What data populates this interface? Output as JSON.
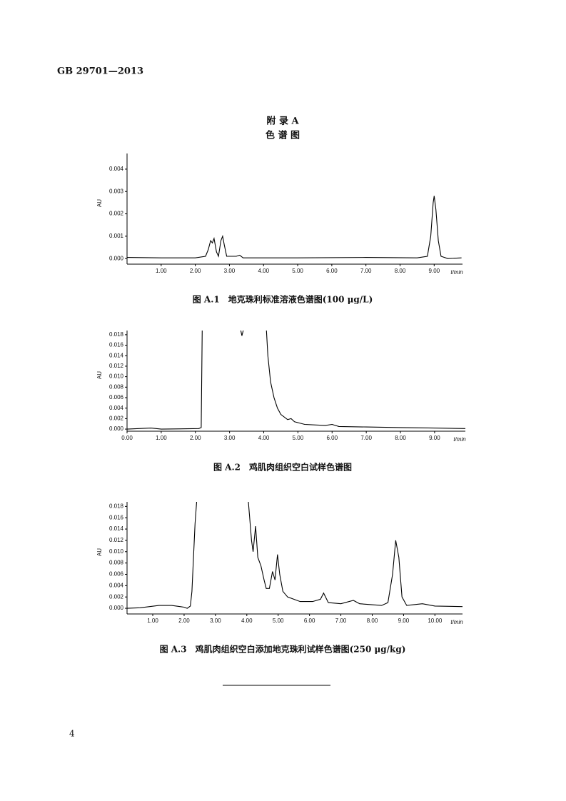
{
  "header": "GB 29701—2013",
  "appendix_title": "附 录 A",
  "appendix_subtitle": "色 谱 图",
  "page_number": "4",
  "chart_data": [
    {
      "type": "line",
      "title": "图 A.1　地克珠利标准溶液色谱图(100 μg/L)",
      "x_label": "t/min",
      "y_label": "AU",
      "color": "#000000",
      "x": [
        0,
        1,
        2,
        2.3,
        2.38,
        2.45,
        2.5,
        2.55,
        2.62,
        2.68,
        2.75,
        2.8,
        2.85,
        2.92,
        3.2,
        3.3,
        3.4,
        5,
        7,
        8.5,
        8.8,
        8.9,
        8.97,
        9,
        9.05,
        9.12,
        9.2,
        9.4,
        9.8
      ],
      "values": [
        5e-05,
        3e-05,
        3e-05,
        0.0001,
        0.0004,
        0.0008,
        0.0007,
        0.0009,
        0.0003,
        0.0001,
        0.0008,
        0.001,
        0.0006,
        0.0001,
        0.0001,
        0.00015,
        3e-05,
        3e-05,
        5e-05,
        3e-05,
        0.0001,
        0.001,
        0.0025,
        0.0028,
        0.0022,
        0.0008,
        0.0001,
        0,
        3e-05
      ],
      "xlim": [
        0,
        9.83
      ],
      "ylim": [
        -0.00025,
        0.0047
      ],
      "xticks": [
        {
          "value": 1,
          "label": "1.00"
        },
        {
          "value": 2,
          "label": "2.00"
        },
        {
          "value": 3,
          "label": "3.00"
        },
        {
          "value": 4,
          "label": "4.00"
        },
        {
          "value": 5,
          "label": "5.00"
        },
        {
          "value": 6,
          "label": "6.00"
        },
        {
          "value": 7,
          "label": "7.00"
        },
        {
          "value": 8,
          "label": "8.00"
        },
        {
          "value": 9,
          "label": "9.00"
        }
      ],
      "yticks": [
        {
          "value": 0,
          "label": "0.000"
        },
        {
          "value": 0.001,
          "label": "0.001"
        },
        {
          "value": 0.002,
          "label": "0.002"
        },
        {
          "value": 0.003,
          "label": "0.003"
        },
        {
          "value": 0.004,
          "label": "0.004"
        }
      ]
    },
    {
      "type": "line",
      "title": "图 A.2　鸡肌肉组织空白试样色谱图",
      "x_label": "t/min",
      "y_label": "AU",
      "color": "#000000",
      "x": [
        0,
        0.7,
        1,
        2.1,
        2.17,
        2.2,
        2.8,
        3.33,
        3.36,
        3.4,
        3.8,
        4.08,
        4.12,
        4.2,
        4.3,
        4.4,
        4.5,
        4.7,
        4.8,
        4.9,
        5.2,
        5.8,
        6,
        6.2,
        7,
        8,
        9,
        9.9
      ],
      "values": [
        0,
        0.0002,
        0,
        0.0001,
        0.0003,
        0.0188,
        null,
        0.0188,
        0.0178,
        0.0188,
        null,
        0.0188,
        0.014,
        0.009,
        0.006,
        0.004,
        0.0028,
        0.0018,
        0.002,
        0.0014,
        0.0009,
        0.0007,
        0.0009,
        0.0005,
        0.0004,
        0.0003,
        0.0002,
        0.0001
      ],
      "xlim": [
        0,
        9.9
      ],
      "ylim": [
        -0.0004,
        0.0188
      ],
      "xticks": [
        {
          "value": 0,
          "label": "0.00"
        },
        {
          "value": 1,
          "label": "1.00"
        },
        {
          "value": 2,
          "label": "2.00"
        },
        {
          "value": 3,
          "label": "3.00"
        },
        {
          "value": 4,
          "label": "4.00"
        },
        {
          "value": 5,
          "label": "5.00"
        },
        {
          "value": 6,
          "label": "6.00"
        },
        {
          "value": 7,
          "label": "7.00"
        },
        {
          "value": 8,
          "label": "8.00"
        },
        {
          "value": 9,
          "label": "9.00"
        }
      ],
      "yticks": [
        {
          "value": 0,
          "label": "0.000"
        },
        {
          "value": 0.002,
          "label": "0.002"
        },
        {
          "value": 0.004,
          "label": "0.004"
        },
        {
          "value": 0.006,
          "label": "0.006"
        },
        {
          "value": 0.008,
          "label": "0.008"
        },
        {
          "value": 0.01,
          "label": "0.010"
        },
        {
          "value": 0.012,
          "label": "0.012"
        },
        {
          "value": 0.014,
          "label": "0.014"
        },
        {
          "value": 0.016,
          "label": "0.016"
        },
        {
          "value": 0.018,
          "label": "0.018"
        }
      ]
    },
    {
      "type": "line",
      "title": "图 A.3　鸡肌肉组织空白添加地克珠利试样色谱图(250 μg/kg)",
      "x_label": "t/min",
      "y_label": "AU",
      "color": "#000000",
      "x": [
        0.18,
        0.6,
        1.2,
        1.6,
        2,
        2.1,
        2.2,
        2.25,
        2.35,
        2.4,
        3,
        4.05,
        4.15,
        4.2,
        4.28,
        4.35,
        4.45,
        4.55,
        4.62,
        4.72,
        4.82,
        4.9,
        4.98,
        5.05,
        5.15,
        5.3,
        5.7,
        6.1,
        6.35,
        6.45,
        6.6,
        7,
        7.4,
        7.6,
        8.3,
        8.5,
        8.65,
        8.75,
        8.85,
        8.95,
        9.1,
        9.6,
        10,
        10.88
      ],
      "values": [
        0,
        0.0001,
        0.0005,
        0.0005,
        0.0002,
        0,
        0.0004,
        0.003,
        0.015,
        0.0188,
        null,
        0.0188,
        0.012,
        0.01,
        0.0145,
        0.009,
        0.0075,
        0.005,
        0.0035,
        0.0035,
        0.0065,
        0.005,
        0.0095,
        0.006,
        0.003,
        0.002,
        0.0012,
        0.0012,
        0.0016,
        0.0027,
        0.001,
        0.0008,
        0.0014,
        0.0008,
        0.0005,
        0.001,
        0.006,
        0.012,
        0.009,
        0.002,
        0.0005,
        0.0008,
        0.0004,
        0.0003
      ],
      "xlim": [
        0.18,
        10.88
      ],
      "ylim": [
        -0.001,
        0.0188
      ],
      "xticks": [
        {
          "value": 1,
          "label": "1.00"
        },
        {
          "value": 2,
          "label": "2.00"
        },
        {
          "value": 3,
          "label": "3.00"
        },
        {
          "value": 4,
          "label": "4.00"
        },
        {
          "value": 5,
          "label": "5.00"
        },
        {
          "value": 6,
          "label": "6.00"
        },
        {
          "value": 7,
          "label": "7.00"
        },
        {
          "value": 8,
          "label": "8.00"
        },
        {
          "value": 9,
          "label": "9.00"
        },
        {
          "value": 10,
          "label": "10.00"
        }
      ],
      "yticks": [
        {
          "value": 0,
          "label": "0.000"
        },
        {
          "value": 0.002,
          "label": "0.002"
        },
        {
          "value": 0.004,
          "label": "0.004"
        },
        {
          "value": 0.006,
          "label": "0.006"
        },
        {
          "value": 0.008,
          "label": "0.008"
        },
        {
          "value": 0.01,
          "label": "0.010"
        },
        {
          "value": 0.012,
          "label": "0.012"
        },
        {
          "value": 0.014,
          "label": "0.014"
        },
        {
          "value": 0.016,
          "label": "0.016"
        },
        {
          "value": 0.018,
          "label": "0.018"
        }
      ]
    }
  ]
}
